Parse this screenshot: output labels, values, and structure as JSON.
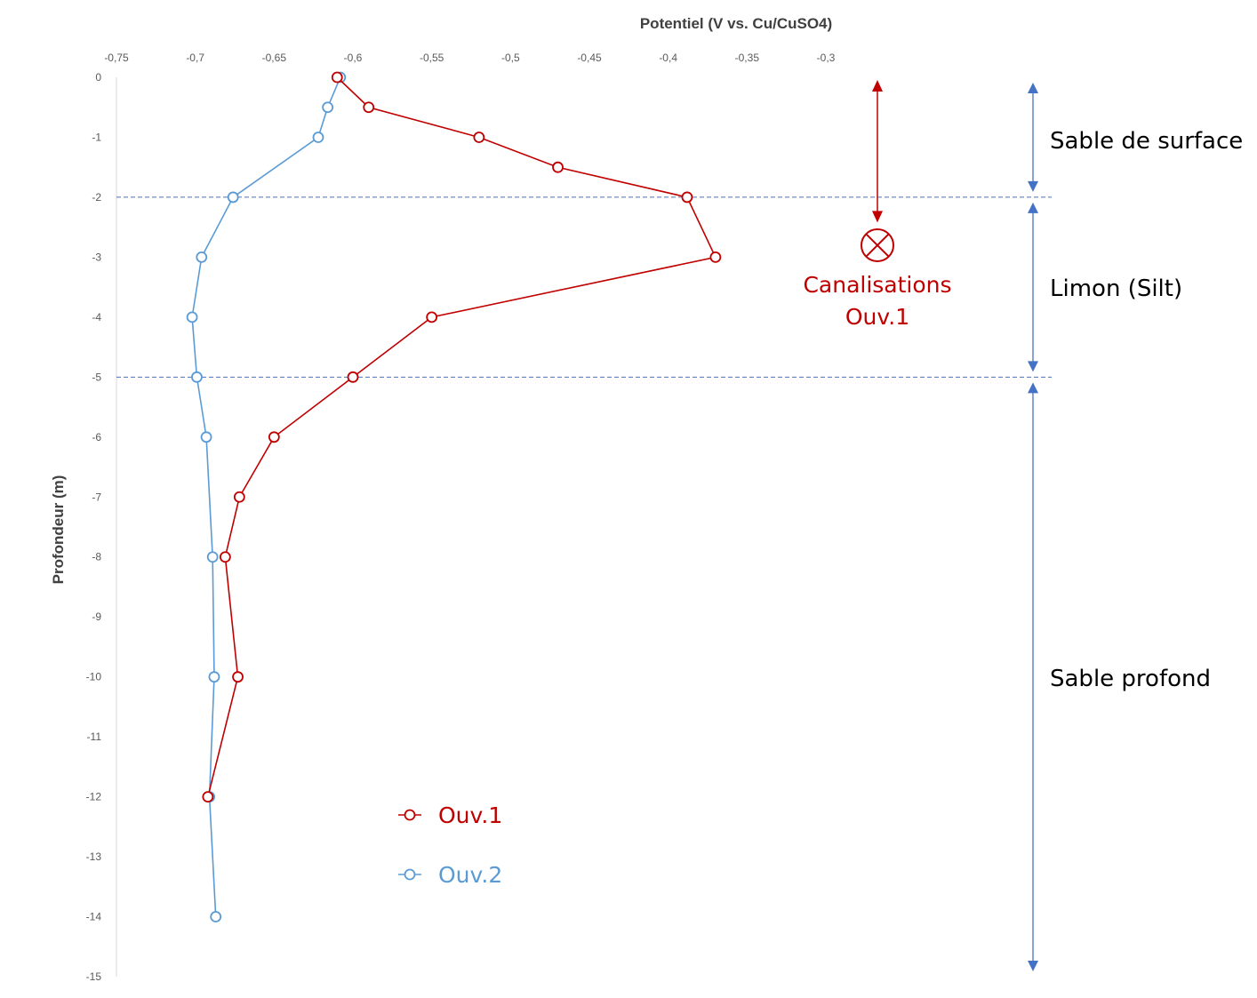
{
  "chart_data": {
    "type": "line",
    "title": "",
    "xlabel": "Potentiel (V vs. Cu/CuSO4)",
    "ylabel": "Profondeur (m)",
    "xlim": [
      -0.75,
      -0.3
    ],
    "ylim": [
      -15,
      0
    ],
    "x_axis_position": "top",
    "x_ticks": [
      "-0,75",
      "-0,7",
      "-0,65",
      "-0,6",
      "-0,55",
      "-0,5",
      "-0,45",
      "-0,4",
      "-0,35",
      "-0,3"
    ],
    "y_ticks": [
      "0",
      "-1",
      "-2",
      "-3",
      "-4",
      "-5",
      "-6",
      "-7",
      "-8",
      "-9",
      "-10",
      "-11",
      "-12",
      "-13",
      "-14",
      "-15"
    ],
    "grid": false,
    "legend_placement": "bottom-center",
    "series": [
      {
        "name": "Ouv.1",
        "color": "#c00000",
        "marker": "open-circle",
        "points": [
          {
            "x": -0.61,
            "y": 0
          },
          {
            "x": -0.59,
            "y": -0.5
          },
          {
            "x": -0.52,
            "y": -1
          },
          {
            "x": -0.47,
            "y": -1.5
          },
          {
            "x": -0.388,
            "y": -2
          },
          {
            "x": -0.37,
            "y": -3
          },
          {
            "x": -0.55,
            "y": -4
          },
          {
            "x": -0.6,
            "y": -5
          },
          {
            "x": -0.65,
            "y": -6
          },
          {
            "x": -0.672,
            "y": -7
          },
          {
            "x": -0.681,
            "y": -8
          },
          {
            "x": -0.673,
            "y": -10
          },
          {
            "x": -0.692,
            "y": -12
          }
        ]
      },
      {
        "name": "Ouv.2",
        "color": "#5b9bd5",
        "marker": "open-circle",
        "points": [
          {
            "x": -0.608,
            "y": 0
          },
          {
            "x": -0.616,
            "y": -0.5
          },
          {
            "x": -0.622,
            "y": -1
          },
          {
            "x": -0.676,
            "y": -2
          },
          {
            "x": -0.696,
            "y": -3
          },
          {
            "x": -0.702,
            "y": -4
          },
          {
            "x": -0.699,
            "y": -5
          },
          {
            "x": -0.693,
            "y": -6
          },
          {
            "x": -0.689,
            "y": -8
          },
          {
            "x": -0.688,
            "y": -10
          },
          {
            "x": -0.691,
            "y": -12
          },
          {
            "x": -0.687,
            "y": -14
          }
        ]
      }
    ],
    "reference_lines": [
      {
        "orientation": "horizontal",
        "y": -2,
        "style": "dashed",
        "color": "#4472c4"
      },
      {
        "orientation": "horizontal",
        "y": -5,
        "style": "dashed",
        "color": "#4472c4"
      }
    ],
    "zones": [
      {
        "label": "Sable de surface",
        "y_top": 0,
        "y_bottom": -2
      },
      {
        "label": "Limon (Silt)",
        "y_top": -2,
        "y_bottom": -5
      },
      {
        "label": "Sable profond",
        "y_top": -5,
        "y_bottom": -15
      }
    ],
    "annotation": {
      "lines": [
        "Canalisations",
        "Ouv.1"
      ],
      "color": "#c00000",
      "y_range": [
        0,
        -2.6
      ],
      "symbol": "circled-x"
    },
    "zone_arrow_color": "#4472c4"
  }
}
